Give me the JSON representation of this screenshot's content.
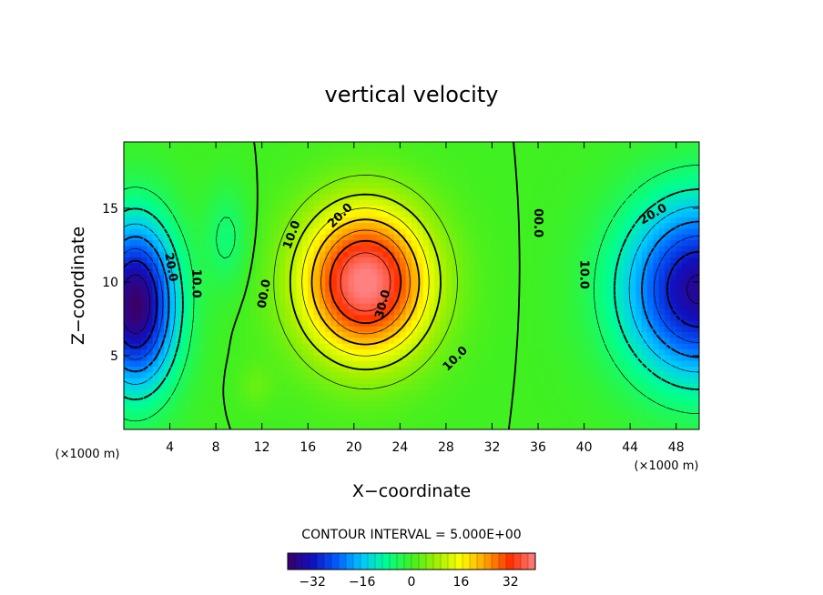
{
  "chart_data": {
    "type": "heatmap",
    "title": "vertical velocity",
    "xlabel": "X−coordinate",
    "ylabel": "Z−coordinate",
    "x_unit_note": "(×1000 m)",
    "y_unit_note": "(×1000 m)",
    "xlim": [
      0,
      50
    ],
    "ylim": [
      0,
      19.5
    ],
    "x_ticks": [
      4,
      8,
      12,
      16,
      20,
      24,
      28,
      32,
      36,
      40,
      44,
      48
    ],
    "x_tick_labels": [
      "4",
      "8",
      "12",
      "16",
      "20",
      "24",
      "28",
      "32",
      "36",
      "40",
      "44",
      "48"
    ],
    "y_ticks": [
      5,
      10,
      15
    ],
    "y_tick_labels": [
      "5",
      "10",
      "15"
    ],
    "contour_interval_text": "CONTOUR INTERVAL = 5.000E+00",
    "contour_interval": 5,
    "colorbar": {
      "min": -40,
      "max": 40,
      "ticks": [
        -32,
        -16,
        0,
        16,
        32
      ],
      "tick_labels": [
        "−32",
        "−16",
        "0",
        "16",
        "32"
      ],
      "colors": [
        "#3b0068",
        "#1010c0",
        "#0060ff",
        "#00c8ff",
        "#00ff90",
        "#40f020",
        "#a0f000",
        "#ffff00",
        "#ffa000",
        "#ff3000",
        "#ff8080"
      ]
    },
    "sources": [
      {
        "x": 21,
        "z": 10,
        "amplitude": 41,
        "sx": 5.5,
        "sz": 5.0
      },
      {
        "x": 1,
        "z": 8.5,
        "amplitude": -40,
        "sx": 3.5,
        "sz": 5.5
      },
      {
        "x": 50,
        "z": 9.5,
        "amplitude": -36,
        "sx": 6.5,
        "sz": 6.0
      },
      {
        "x": 9,
        "z": 13,
        "amplitude": -6,
        "sx": 2.0,
        "sz": 3.5
      },
      {
        "x": 11.5,
        "z": 3,
        "amplitude": 3,
        "sx": 1.5,
        "sz": 1.5
      }
    ],
    "contour_labels": [
      {
        "text": "10.0",
        "x": 14.6,
        "z": 13.2,
        "angle": -70
      },
      {
        "text": "20.0",
        "x": 18.8,
        "z": 14.5,
        "angle": -45
      },
      {
        "text": "30.0",
        "x": 22.5,
        "z": 8.5,
        "angle": -75
      },
      {
        "text": "10.0",
        "x": 28.8,
        "z": 4.8,
        "angle": -45
      },
      {
        "text": "00.0",
        "x": 12.2,
        "z": 9.2,
        "angle": -80
      },
      {
        "text": "10.0",
        "x": 6.3,
        "z": 9.9,
        "angle": 90
      },
      {
        "text": "20.0",
        "x": 4.1,
        "z": 11.0,
        "angle": 80
      },
      {
        "text": "00.0",
        "x": 36.0,
        "z": 14.0,
        "angle": 90
      },
      {
        "text": "10.0",
        "x": 40.0,
        "z": 10.5,
        "angle": 90
      },
      {
        "text": "20.0",
        "x": 46.0,
        "z": 14.6,
        "angle": -30
      }
    ]
  }
}
